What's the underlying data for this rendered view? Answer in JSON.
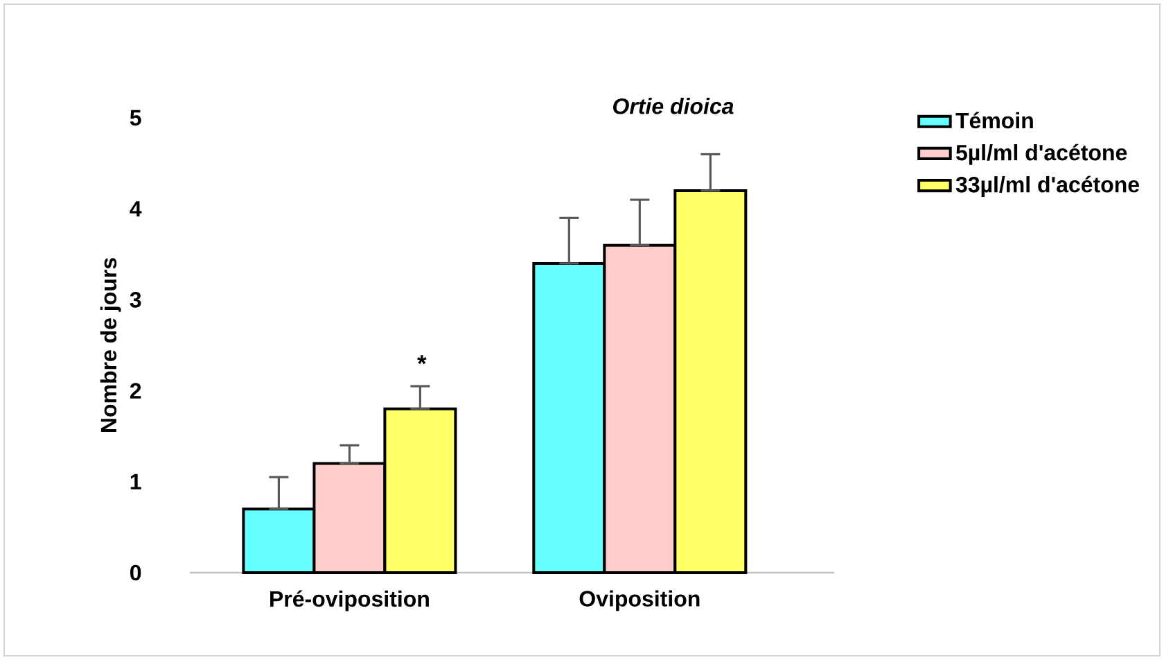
{
  "chart_data": {
    "type": "bar",
    "title": "Ortie dioica",
    "ylabel": "Nombre de jours",
    "categories": [
      "Pré-oviposition",
      "Oviposition"
    ],
    "series": [
      {
        "name": "Témoin",
        "color": "#66ffff",
        "values": [
          0.7,
          3.4
        ],
        "errors": [
          [
            0.7,
            1.05
          ],
          [
            3.4,
            3.9
          ]
        ]
      },
      {
        "name": "5µl/ml d'acétone",
        "color": "#ffcccc",
        "values": [
          1.2,
          3.6
        ],
        "errors": [
          [
            1.2,
            1.4
          ],
          [
            3.6,
            4.1
          ]
        ]
      },
      {
        "name": "33µl/ml d'acétone",
        "color": "#ffff66",
        "values": [
          1.8,
          4.2
        ],
        "errors": [
          [
            1.8,
            2.05
          ],
          [
            4.2,
            4.6
          ]
        ]
      }
    ],
    "annotations": [
      "*"
    ],
    "ylim": [
      0,
      5
    ],
    "yticks": [
      0,
      1,
      2,
      3,
      4,
      5
    ],
    "grid": false,
    "legend": "top right"
  }
}
